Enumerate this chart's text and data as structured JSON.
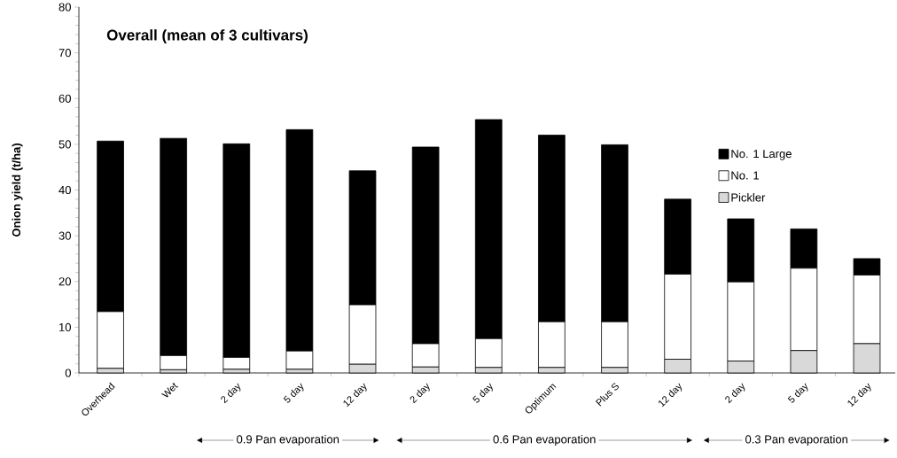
{
  "chart_data": {
    "type": "bar",
    "title": "Overall (mean of 3 cultivars)",
    "ylabel": "Onion yield (t/ha)",
    "categories": [
      "Overhead",
      "Wet",
      "2 day",
      "5 day",
      "12 day",
      "2 day",
      "5 day",
      "Optimum",
      "Plus S",
      "12 day",
      "2 day",
      "5 day",
      "12 day"
    ],
    "stacked": true,
    "series": [
      {
        "name": "Pickler",
        "color": "#d9d9d9",
        "values": [
          1.0,
          0.7,
          0.8,
          0.8,
          1.9,
          1.3,
          1.2,
          1.2,
          1.2,
          3.0,
          2.6,
          4.9,
          6.4
        ]
      },
      {
        "name": "No. 1",
        "color": "#ffffff",
        "values": [
          12.4,
          3.1,
          2.6,
          4.0,
          13.0,
          5.1,
          6.3,
          10.0,
          10.0,
          18.6,
          17.3,
          18.0,
          15.0
        ]
      },
      {
        "name": "No. 1 Large",
        "color": "#000000",
        "values": [
          37.3,
          47.5,
          46.7,
          48.4,
          29.3,
          43.0,
          47.9,
          40.8,
          38.7,
          16.4,
          13.8,
          8.6,
          3.6
        ]
      }
    ],
    "ylim": [
      0,
      80
    ],
    "yticks": [
      0,
      10,
      20,
      30,
      40,
      50,
      60,
      70,
      80
    ],
    "legend": "top right",
    "annotations": [
      "0.9 Pan evaporation",
      "0.6 Pan evaporation",
      "0.3 Pan evaporation"
    ]
  }
}
